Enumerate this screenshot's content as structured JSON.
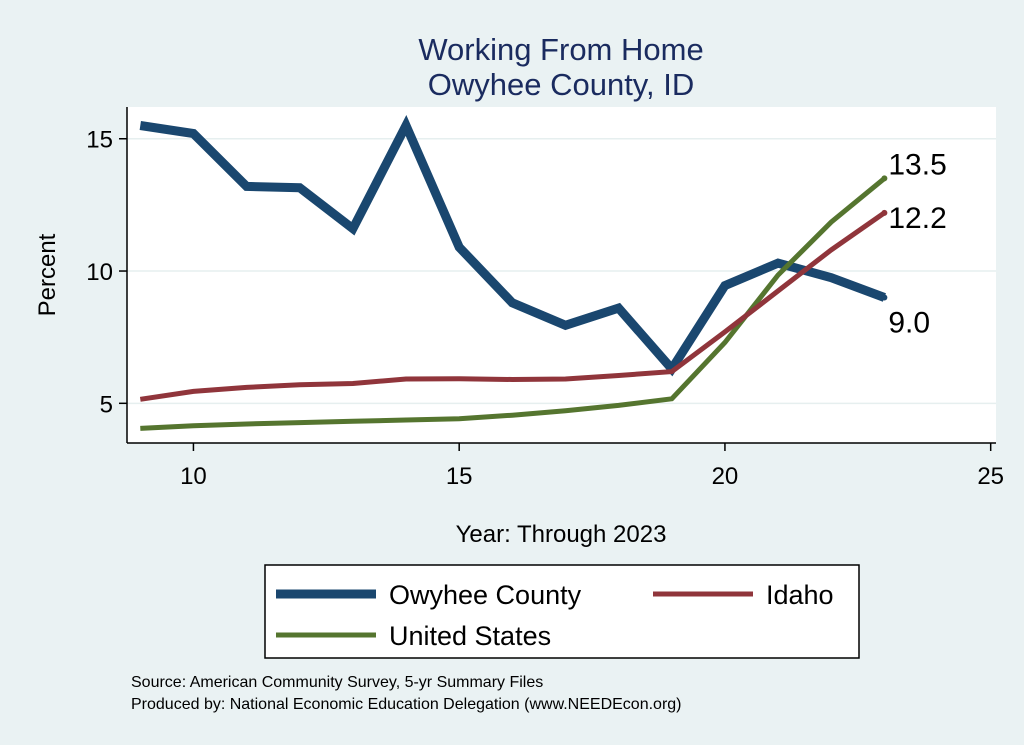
{
  "chart_data": {
    "type": "line",
    "title": [
      "Working From Home",
      "Owyhee County, ID"
    ],
    "xlabel": "Year: Through 2023",
    "ylabel": "Percent",
    "xlim": [
      8.75,
      25.1
    ],
    "ylim": [
      3.5,
      16.2
    ],
    "xticks": [
      10,
      15,
      20,
      25
    ],
    "yticks": [
      5,
      10,
      15
    ],
    "grid": true,
    "x": [
      9,
      10,
      11,
      12,
      13,
      14,
      15,
      16,
      17,
      18,
      19,
      20,
      21,
      22,
      23
    ],
    "series": [
      {
        "name": "Owyhee County",
        "color": "#1a476f",
        "width": 9,
        "values": [
          15.5,
          15.2,
          13.2,
          13.15,
          11.6,
          15.5,
          10.9,
          8.8,
          7.95,
          8.6,
          6.3,
          9.45,
          10.3,
          9.75,
          9.0
        ],
        "end_label": "9.0"
      },
      {
        "name": "Idaho",
        "color": "#90353b",
        "width": 5,
        "values": [
          5.15,
          5.45,
          5.6,
          5.7,
          5.75,
          5.92,
          5.93,
          5.9,
          5.92,
          6.05,
          6.2,
          7.7,
          9.25,
          10.8,
          12.2
        ],
        "end_label": "12.2"
      },
      {
        "name": "United States",
        "color": "#55752f",
        "width": 5,
        "values": [
          4.05,
          4.15,
          4.22,
          4.27,
          4.32,
          4.37,
          4.42,
          4.55,
          4.72,
          4.92,
          5.17,
          7.3,
          9.85,
          11.85,
          13.5
        ],
        "end_label": "13.5"
      }
    ],
    "legend_position": "bottom",
    "notes": [
      "Source: American Community Survey, 5-yr Summary Files",
      "Produced by: National Economic Education Delegation (www.NEEDEcon.org)"
    ]
  }
}
